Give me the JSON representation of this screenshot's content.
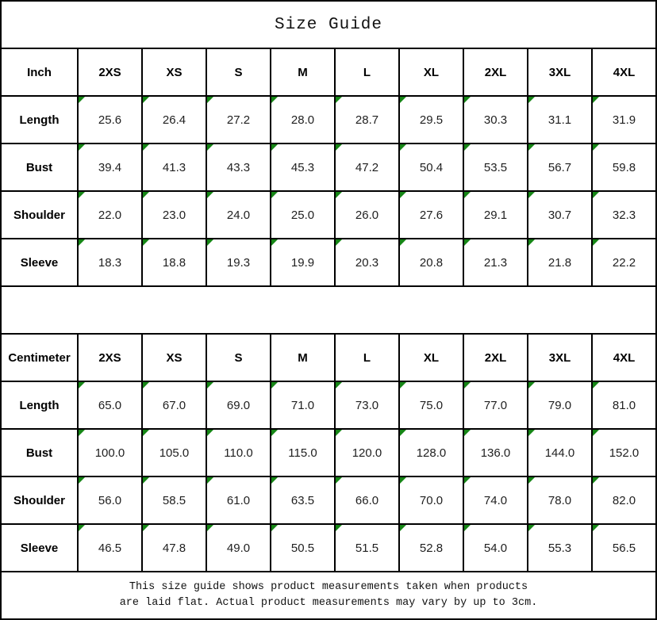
{
  "title": "Size Guide",
  "colors": {
    "border": "#000000",
    "flag_green": "#168616",
    "background": "#ffffff"
  },
  "footer": {
    "line1": "This size guide shows product measurements taken when products",
    "line2": "are laid flat. Actual product measurements may vary by up to 3cm."
  },
  "chart_data": [
    {
      "type": "table",
      "unit_label": "Inch",
      "sizes": [
        "2XS",
        "XS",
        "S",
        "M",
        "L",
        "XL",
        "2XL",
        "3XL",
        "4XL"
      ],
      "rows": [
        {
          "label": "Length",
          "values": [
            "25.6",
            "26.4",
            "27.2",
            "28.0",
            "28.7",
            "29.5",
            "30.3",
            "31.1",
            "31.9"
          ]
        },
        {
          "label": "Bust",
          "values": [
            "39.4",
            "41.3",
            "43.3",
            "45.3",
            "47.2",
            "50.4",
            "53.5",
            "56.7",
            "59.8"
          ]
        },
        {
          "label": "Shoulder",
          "values": [
            "22.0",
            "23.0",
            "24.0",
            "25.0",
            "26.0",
            "27.6",
            "29.1",
            "30.7",
            "32.3"
          ]
        },
        {
          "label": "Sleeve",
          "values": [
            "18.3",
            "18.8",
            "19.3",
            "19.9",
            "20.3",
            "20.8",
            "21.3",
            "21.8",
            "22.2"
          ]
        }
      ]
    },
    {
      "type": "table",
      "unit_label": "Centimeter",
      "sizes": [
        "2XS",
        "XS",
        "S",
        "M",
        "L",
        "XL",
        "2XL",
        "3XL",
        "4XL"
      ],
      "rows": [
        {
          "label": "Length",
          "values": [
            "65.0",
            "67.0",
            "69.0",
            "71.0",
            "73.0",
            "75.0",
            "77.0",
            "79.0",
            "81.0"
          ]
        },
        {
          "label": "Bust",
          "values": [
            "100.0",
            "105.0",
            "110.0",
            "115.0",
            "120.0",
            "128.0",
            "136.0",
            "144.0",
            "152.0"
          ]
        },
        {
          "label": "Shoulder",
          "values": [
            "56.0",
            "58.5",
            "61.0",
            "63.5",
            "66.0",
            "70.0",
            "74.0",
            "78.0",
            "82.0"
          ]
        },
        {
          "label": "Sleeve",
          "values": [
            "46.5",
            "47.8",
            "49.0",
            "50.5",
            "51.5",
            "52.8",
            "54.0",
            "55.3",
            "56.5"
          ]
        }
      ]
    }
  ]
}
